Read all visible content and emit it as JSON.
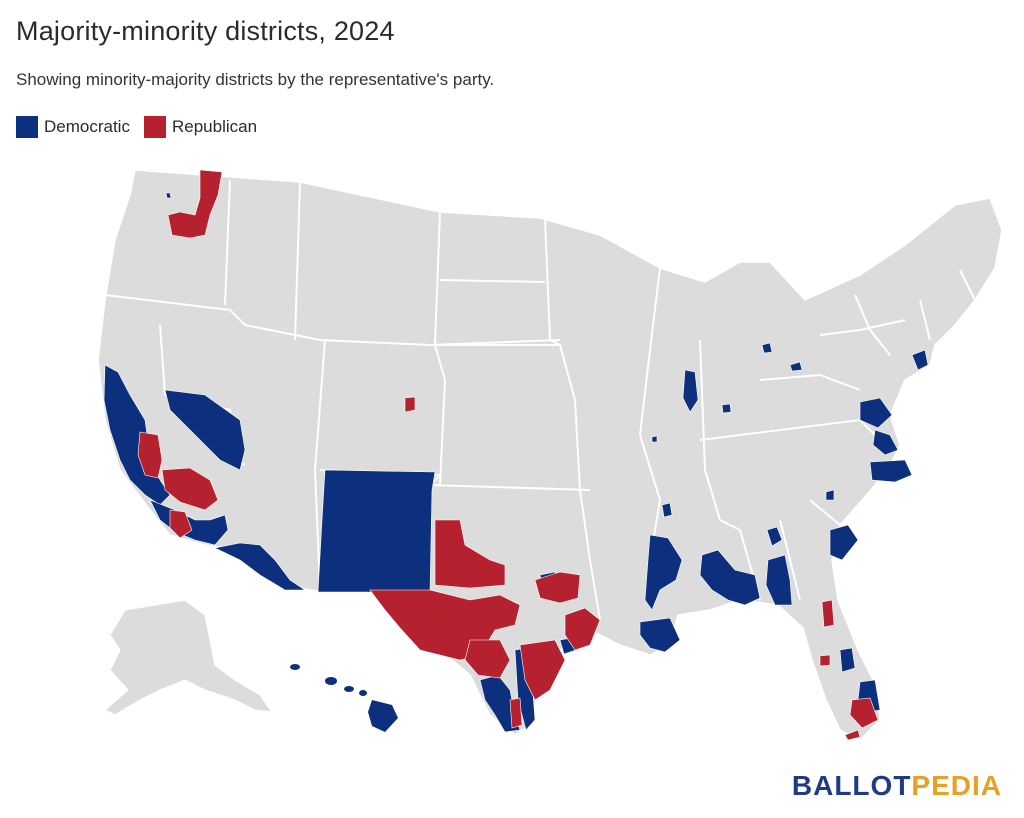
{
  "header": {
    "title": "Majority-minority districts, 2024",
    "subtitle": "Showing minority-majority districts by the representative's party."
  },
  "legend": [
    {
      "label": "Democratic",
      "color": "#0c2f7e"
    },
    {
      "label": "Republican",
      "color": "#b5212e"
    }
  ],
  "map": {
    "base_color": "#dcdcdc",
    "border_color": "#ffffff",
    "democratic_color": "#0c2f7e",
    "republican_color": "#b5212e"
  },
  "brand": {
    "part1": "BALLOT",
    "part2": "PEDIA"
  }
}
